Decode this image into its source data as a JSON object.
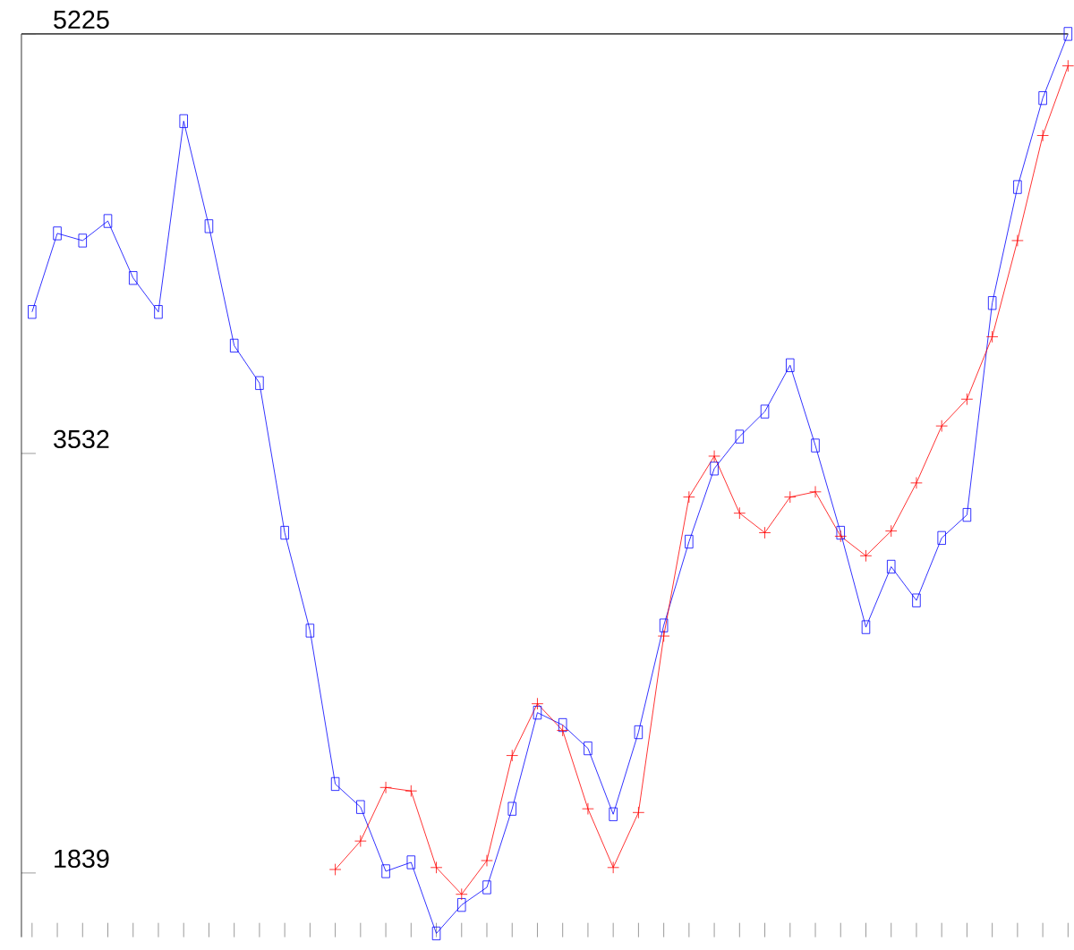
{
  "chart_data": {
    "type": "line",
    "categories": [
      null,
      null,
      null,
      null,
      null,
      null,
      null,
      null,
      null,
      null,
      null,
      null,
      null,
      null,
      null,
      null,
      null,
      null,
      null,
      null,
      null,
      null,
      null,
      null,
      null,
      null,
      null,
      null,
      null,
      null,
      null,
      null,
      null,
      null,
      null,
      null,
      null,
      null,
      null,
      null,
      null,
      null
    ],
    "series": [
      {
        "color": "#0000ff",
        "marker": "square",
        "values": [
          4103,
          4420,
          4391,
          4470,
          4240,
          4103,
          4873,
          4449,
          3967,
          3816,
          3212,
          2817,
          2198,
          2105,
          1846,
          1882,
          1595,
          1710,
          1781,
          2098,
          2486,
          2436,
          2342,
          2076,
          2407,
          2838,
          3176,
          3471,
          3600,
          3701,
          3888,
          3564,
          3212,
          2831,
          3075,
          2939,
          3191,
          3284,
          4139,
          4607,
          4966,
          5225
        ]
      },
      {
        "color": "#ff0000",
        "marker": "cross",
        "values": [
          null,
          null,
          null,
          null,
          null,
          null,
          null,
          null,
          null,
          null,
          null,
          null,
          1853,
          1968,
          2184,
          2170,
          1861,
          1753,
          1889,
          2313,
          2522,
          2414,
          2098,
          1861,
          2083,
          2795,
          3356,
          3521,
          3291,
          3212,
          3356,
          3377,
          3198,
          3119,
          3219,
          3413,
          3643,
          3751,
          4003,
          4391,
          4815,
          5096
        ]
      }
    ],
    "ylim": [
      1580,
      5225
    ],
    "yticks": [
      1839,
      3532,
      5225
    ],
    "tick_labels": "y",
    "grid": false,
    "line_style": "solid"
  }
}
